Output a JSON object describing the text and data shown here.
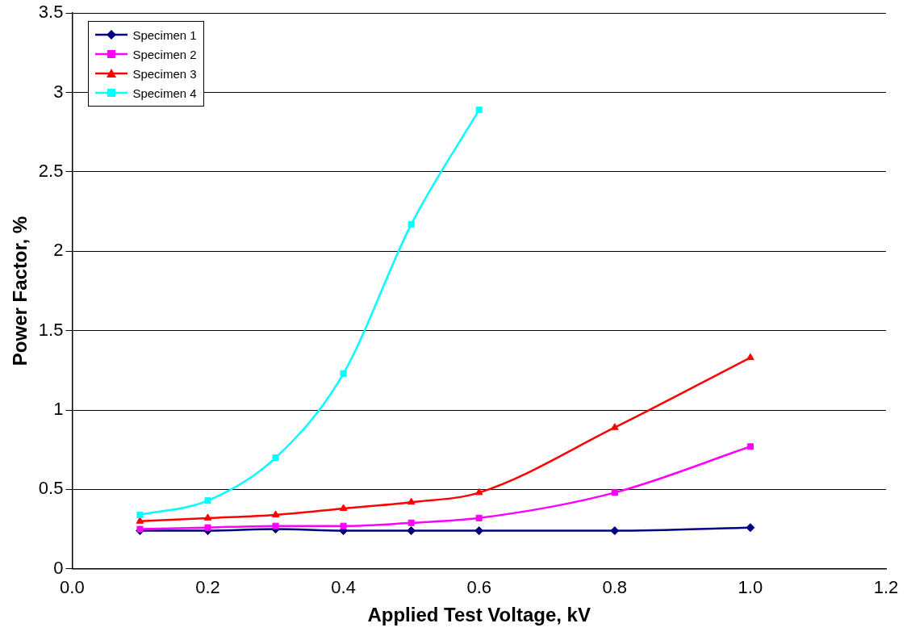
{
  "chart_data": {
    "type": "line",
    "xlabel": "Applied Test Voltage, kV",
    "ylabel": "Power Factor, %",
    "x": [
      0.1,
      0.2,
      0.3,
      0.4,
      0.5,
      0.6,
      0.8,
      1.0
    ],
    "series": [
      {
        "name": "Specimen 1",
        "color": "#000080",
        "marker": "diamond",
        "values": [
          0.24,
          0.24,
          0.25,
          0.24,
          0.24,
          0.24,
          0.24,
          0.26
        ]
      },
      {
        "name": "Specimen 2",
        "color": "#ff00ff",
        "marker": "square",
        "values": [
          0.25,
          0.26,
          0.27,
          0.27,
          0.29,
          0.32,
          0.48,
          0.77
        ]
      },
      {
        "name": "Specimen 3",
        "color": "#ff0000",
        "marker": "triangle",
        "values": [
          0.3,
          0.32,
          0.34,
          0.38,
          0.42,
          0.48,
          0.89,
          1.33
        ]
      },
      {
        "name": "Specimen 4",
        "color": "#00ffff",
        "marker": "square",
        "values": [
          0.34,
          0.43,
          0.7,
          1.23,
          2.17,
          2.89,
          null,
          null
        ]
      }
    ],
    "xlim": [
      0,
      1.2
    ],
    "xticks": [
      {
        "value": 0,
        "label": "0.0"
      },
      {
        "value": 0.2,
        "label": "0.2"
      },
      {
        "value": 0.4,
        "label": "0.4"
      },
      {
        "value": 0.6,
        "label": "0.6"
      },
      {
        "value": 0.8,
        "label": "0.8"
      },
      {
        "value": 1.0,
        "label": "1.0"
      },
      {
        "value": 1.2,
        "label": "1.2"
      }
    ],
    "ylim": [
      0,
      3.5
    ],
    "yticks": [
      0,
      0.5,
      1,
      1.5,
      2,
      2.5,
      3,
      3.5
    ],
    "grid": "y",
    "legend": "top left",
    "line_style": "solid"
  }
}
